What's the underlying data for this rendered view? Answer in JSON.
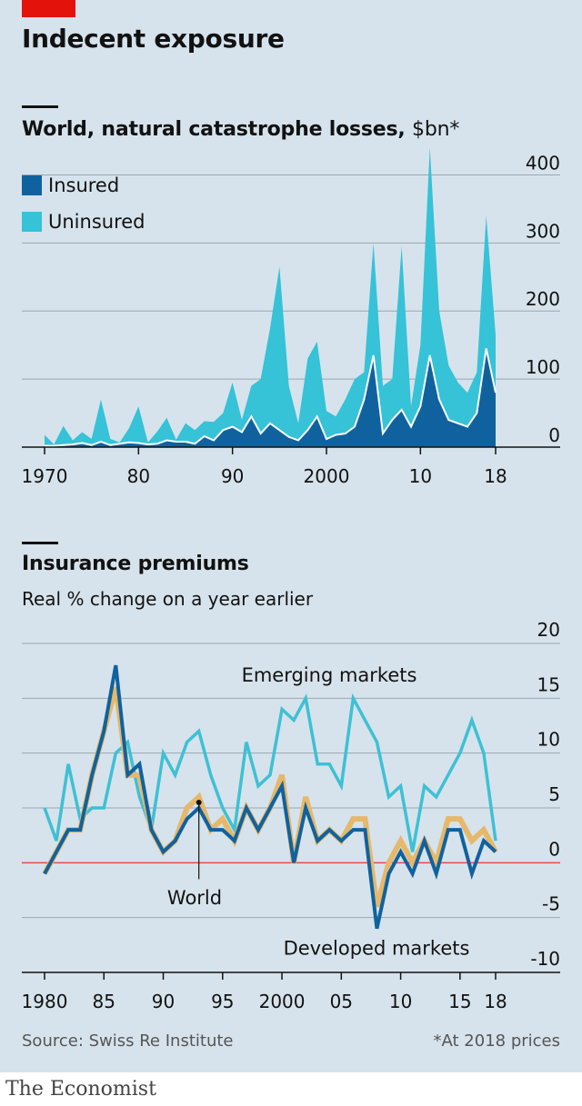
{
  "header": {
    "title": "Indecent exposure"
  },
  "colors": {
    "insured": "#10629e",
    "uninsured": "#36c2d7",
    "world": "#e6b86a",
    "developed": "#10629e",
    "emerging": "#3fc0d4",
    "zero_line": "#e8484a",
    "grid": "#9aa6b0",
    "panel_bg": "#d6e3ec"
  },
  "chart1": {
    "title": "World, natural catastrophe losses,",
    "unit": "$bn*",
    "legend": {
      "insured": "Insured",
      "uninsured": "Uninsured"
    }
  },
  "chart2": {
    "title": "Insurance premiums",
    "subtitle": "Real % change on a year earlier"
  },
  "footer": {
    "source": "Source: Swiss Re Institute",
    "note": "*At 2018 prices",
    "brand": "The Economist"
  },
  "chart_data": [
    {
      "type": "area",
      "title": "World, natural catastrophe losses, $bn*",
      "x": [
        1970,
        1971,
        1972,
        1973,
        1974,
        1975,
        1976,
        1977,
        1978,
        1979,
        1980,
        1981,
        1982,
        1983,
        1984,
        1985,
        1986,
        1987,
        1988,
        1989,
        1990,
        1991,
        1992,
        1993,
        1994,
        1995,
        1996,
        1997,
        1998,
        1999,
        2000,
        2001,
        2002,
        2003,
        2004,
        2005,
        2006,
        2007,
        2008,
        2009,
        2010,
        2011,
        2012,
        2013,
        2014,
        2015,
        2016,
        2017,
        2018
      ],
      "xticks": [
        1970,
        1980,
        1990,
        2000,
        2010,
        2018
      ],
      "xtick_labels": [
        "1970",
        "80",
        "90",
        "2000",
        "10",
        "18"
      ],
      "ylim": [
        0,
        450
      ],
      "yticks": [
        0,
        100,
        200,
        300,
        400
      ],
      "ytick_labels": [
        "0",
        "100",
        "200",
        "300",
        "400"
      ],
      "stacked": true,
      "series": [
        {
          "name": "Insured",
          "values": [
            2,
            2,
            3,
            4,
            6,
            3,
            8,
            3,
            5,
            7,
            6,
            4,
            5,
            10,
            8,
            8,
            5,
            16,
            10,
            25,
            30,
            22,
            45,
            20,
            35,
            25,
            15,
            10,
            25,
            45,
            12,
            18,
            20,
            30,
            70,
            135,
            20,
            40,
            55,
            30,
            60,
            135,
            70,
            40,
            35,
            30,
            50,
            145,
            80
          ]
        },
        {
          "name": "Uninsured",
          "values": [
            16,
            2,
            28,
            6,
            16,
            9,
            62,
            9,
            2,
            21,
            54,
            3,
            18,
            33,
            3,
            27,
            20,
            22,
            27,
            25,
            65,
            18,
            45,
            80,
            140,
            240,
            75,
            25,
            105,
            110,
            41,
            27,
            50,
            70,
            40,
            165,
            70,
            60,
            240,
            30,
            90,
            305,
            130,
            80,
            60,
            50,
            60,
            195,
            85
          ]
        }
      ],
      "legend": "top-left"
    },
    {
      "type": "line",
      "title": "Insurance premiums",
      "subtitle": "Real % change on a year earlier",
      "x": [
        1980,
        1981,
        1982,
        1983,
        1984,
        1985,
        1986,
        1987,
        1988,
        1989,
        1990,
        1991,
        1992,
        1993,
        1994,
        1995,
        1996,
        1997,
        1998,
        1999,
        2000,
        2001,
        2002,
        2003,
        2004,
        2005,
        2006,
        2007,
        2008,
        2009,
        2010,
        2011,
        2012,
        2013,
        2014,
        2015,
        2016,
        2017,
        2018
      ],
      "xticks": [
        1980,
        1985,
        1990,
        1995,
        2000,
        2005,
        2010,
        2015,
        2018
      ],
      "xtick_labels": [
        "1980",
        "85",
        "90",
        "95",
        "2000",
        "05",
        "10",
        "15",
        "18"
      ],
      "ylim": [
        -10,
        20
      ],
      "yticks": [
        -10,
        -5,
        0,
        5,
        10,
        15,
        20
      ],
      "ytick_labels": [
        "-10",
        "-5",
        "0",
        "5",
        "10",
        "15",
        "20"
      ],
      "series": [
        {
          "name": "Emerging markets",
          "values": [
            5,
            2,
            9,
            4,
            5,
            5,
            10,
            11,
            6,
            3,
            10,
            8,
            11,
            12,
            8,
            5,
            3,
            11,
            7,
            8,
            14,
            13,
            15,
            9,
            9,
            7,
            15,
            13,
            11,
            6,
            7,
            1,
            7,
            6,
            8,
            10,
            13,
            10,
            2
          ]
        },
        {
          "name": "World",
          "values": [
            -1,
            1,
            3,
            3,
            8,
            12,
            16,
            8,
            8,
            3,
            1,
            2,
            5,
            6,
            3,
            4,
            2,
            5,
            3,
            5,
            8,
            0,
            6,
            2,
            3,
            2,
            4,
            4,
            -4,
            0,
            2,
            0,
            2,
            0,
            4,
            4,
            2,
            3,
            1
          ]
        },
        {
          "name": "Developed markets",
          "values": [
            -1,
            1,
            3,
            3,
            8,
            12,
            18,
            8,
            9,
            3,
            1,
            2,
            4,
            5,
            3,
            3,
            2,
            5,
            3,
            5,
            7,
            0,
            5,
            2,
            3,
            2,
            3,
            3,
            -6,
            -1,
            1,
            -1,
            2,
            -1,
            3,
            3,
            -1,
            2,
            1
          ]
        }
      ],
      "annotations": [
        "Emerging markets",
        "World",
        "Developed markets"
      ]
    }
  ]
}
